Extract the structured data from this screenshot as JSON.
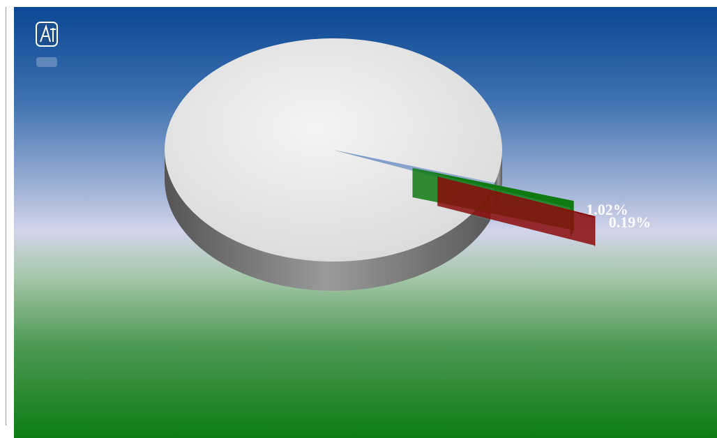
{
  "chart_data": {
    "type": "pie3d",
    "values": [
      98.79,
      1.02,
      0.19
    ],
    "value_labels": [
      null,
      "1.02%",
      "0.19%"
    ],
    "colors": [
      "#ececec",
      "#0f7a12",
      "#8a0c0c"
    ]
  }
}
